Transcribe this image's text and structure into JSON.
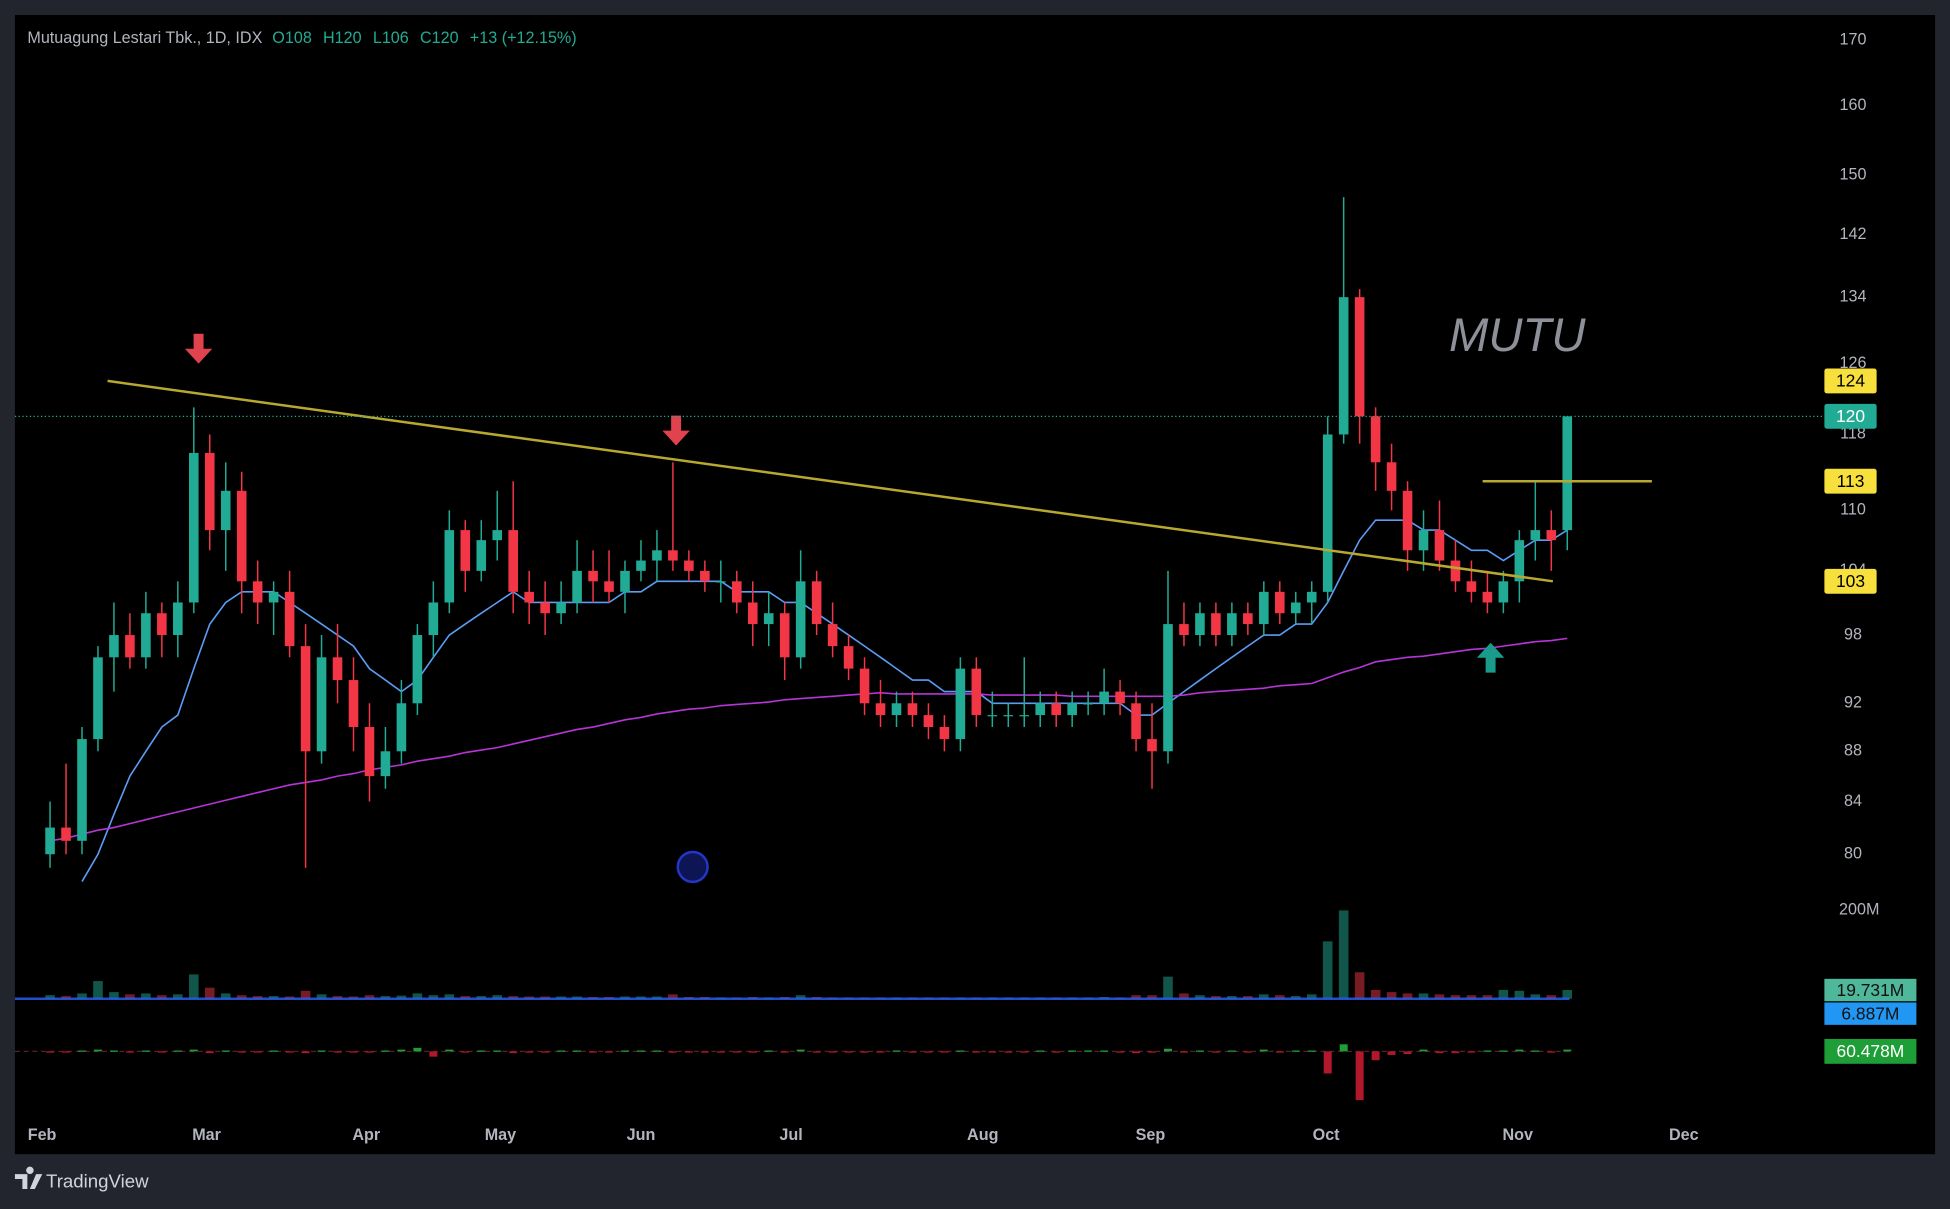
{
  "chart_data": {
    "type": "candlestick",
    "title": "Mutuagung Lestari Tbk., 1D, IDX",
    "legend_values": [
      "O108",
      "H120",
      "L106",
      "C120",
      "+13 (+12.15%)"
    ],
    "watermark": "MUTU",
    "up_color": "#22ab94",
    "down_color": "#f23645",
    "log_scale": true,
    "grid": false,
    "xlim": [
      -2.2,
      110.4
    ],
    "xticks": [
      {
        "value": -0.5,
        "label": "Feb"
      },
      {
        "value": 9.8,
        "label": "Mar"
      },
      {
        "value": 19.8,
        "label": "Apr"
      },
      {
        "value": 28.2,
        "label": "May"
      },
      {
        "value": 37.0,
        "label": "Jun"
      },
      {
        "value": 46.4,
        "label": "Jul"
      },
      {
        "value": 58.4,
        "label": "Aug"
      },
      {
        "value": 68.9,
        "label": "Sep"
      },
      {
        "value": 79.9,
        "label": "Oct"
      },
      {
        "value": 91.9,
        "label": "Nov"
      },
      {
        "value": 102.3,
        "label": "Dec"
      }
    ],
    "ylim": [
      77,
      174
    ],
    "yticks": [
      80,
      84,
      88,
      92,
      98,
      104,
      110,
      118,
      126,
      134,
      142,
      150,
      160,
      170
    ],
    "candles": [
      [
        80,
        84,
        79,
        82
      ],
      [
        82,
        87,
        80,
        81
      ],
      [
        81,
        90,
        80,
        89
      ],
      [
        89,
        97,
        88,
        96
      ],
      [
        96,
        101,
        93,
        98
      ],
      [
        98,
        100,
        95,
        96
      ],
      [
        96,
        102,
        95,
        100
      ],
      [
        100,
        101,
        96,
        98
      ],
      [
        98,
        103,
        96,
        101
      ],
      [
        101,
        121,
        100,
        116
      ],
      [
        116,
        118,
        106,
        108
      ],
      [
        108,
        115,
        104,
        112
      ],
      [
        112,
        114,
        100,
        103
      ],
      [
        103,
        105,
        99,
        101
      ],
      [
        101,
        103,
        98,
        102
      ],
      [
        102,
        104,
        96,
        97
      ],
      [
        97,
        99,
        79,
        88
      ],
      [
        88,
        98,
        87,
        96
      ],
      [
        96,
        99,
        92,
        94
      ],
      [
        94,
        96,
        88,
        90
      ],
      [
        90,
        92,
        84,
        86
      ],
      [
        86,
        90,
        85,
        88
      ],
      [
        88,
        94,
        87,
        92
      ],
      [
        92,
        99,
        91,
        98
      ],
      [
        98,
        103,
        96,
        101
      ],
      [
        101,
        110,
        100,
        108
      ],
      [
        108,
        109,
        102,
        104
      ],
      [
        104,
        109,
        103,
        107
      ],
      [
        107,
        112,
        105,
        108
      ],
      [
        108,
        113,
        100,
        102
      ],
      [
        102,
        104,
        99,
        101
      ],
      [
        101,
        103,
        98,
        100
      ],
      [
        100,
        103,
        99,
        101
      ],
      [
        101,
        107,
        100,
        104
      ],
      [
        104,
        106,
        101,
        103
      ],
      [
        103,
        106,
        101,
        102
      ],
      [
        102,
        105,
        100,
        104
      ],
      [
        104,
        107,
        103,
        105
      ],
      [
        105,
        108,
        103,
        106
      ],
      [
        106,
        115,
        104,
        105
      ],
      [
        105,
        106,
        103,
        104
      ],
      [
        104,
        105,
        102,
        103
      ],
      [
        103,
        105,
        101,
        103
      ],
      [
        103,
        104,
        100,
        101
      ],
      [
        101,
        103,
        97,
        99
      ],
      [
        99,
        102,
        97,
        100
      ],
      [
        100,
        101,
        94,
        96
      ],
      [
        96,
        106,
        95,
        103
      ],
      [
        103,
        104,
        98,
        99
      ],
      [
        99,
        101,
        96,
        97
      ],
      [
        97,
        98,
        94,
        95
      ],
      [
        95,
        96,
        91,
        92
      ],
      [
        92,
        94,
        90,
        91
      ],
      [
        91,
        93,
        90,
        92
      ],
      [
        92,
        93,
        90,
        91
      ],
      [
        91,
        92,
        89,
        90
      ],
      [
        90,
        91,
        88,
        89
      ],
      [
        89,
        96,
        88,
        95
      ],
      [
        95,
        96,
        90,
        91
      ],
      [
        91,
        93,
        90,
        91
      ],
      [
        91,
        92,
        90,
        91
      ],
      [
        91,
        96,
        90,
        91
      ],
      [
        91,
        93,
        90,
        92
      ],
      [
        92,
        93,
        90,
        91
      ],
      [
        91,
        93,
        90,
        92
      ],
      [
        92,
        93,
        91,
        92
      ],
      [
        92,
        95,
        91,
        93
      ],
      [
        93,
        94,
        91,
        92
      ],
      [
        92,
        93,
        88,
        89
      ],
      [
        89,
        92,
        85,
        88
      ],
      [
        88,
        104,
        87,
        99
      ],
      [
        99,
        101,
        97,
        98
      ],
      [
        98,
        101,
        97,
        100
      ],
      [
        100,
        101,
        97,
        98
      ],
      [
        98,
        101,
        97,
        100
      ],
      [
        100,
        101,
        98,
        99
      ],
      [
        99,
        103,
        98,
        102
      ],
      [
        102,
        103,
        99,
        100
      ],
      [
        100,
        102,
        99,
        101
      ],
      [
        101,
        103,
        99,
        102
      ],
      [
        102,
        120,
        101,
        118
      ],
      [
        118,
        147,
        117,
        134
      ],
      [
        134,
        135,
        117,
        120
      ],
      [
        120,
        121,
        112,
        115
      ],
      [
        115,
        117,
        110,
        112
      ],
      [
        112,
        113,
        104,
        106
      ],
      [
        106,
        110,
        104,
        108
      ],
      [
        108,
        111,
        104,
        105
      ],
      [
        105,
        107,
        102,
        103
      ],
      [
        103,
        105,
        101,
        102
      ],
      [
        102,
        104,
        100,
        101
      ],
      [
        101,
        104,
        100,
        103
      ],
      [
        103,
        108,
        101,
        107
      ],
      [
        107,
        113,
        105,
        108
      ],
      [
        108,
        110,
        104,
        107
      ],
      [
        108,
        120,
        106,
        120
      ]
    ],
    "moving_averages": [
      {
        "color": "#5b9cf6",
        "values": [
          null,
          null,
          78,
          80,
          83,
          86,
          88,
          90,
          91,
          95,
          99,
          101,
          102,
          102,
          102,
          101,
          100,
          99,
          98,
          97,
          95,
          94,
          93,
          94,
          96,
          98,
          99,
          100,
          101,
          102,
          101,
          101,
          101,
          101,
          101,
          101,
          102,
          102,
          103,
          103,
          103,
          103,
          103,
          102,
          102,
          102,
          101,
          101,
          100,
          99,
          98,
          97,
          96,
          95,
          94,
          94,
          93,
          93,
          93,
          92,
          92,
          92,
          92,
          92,
          92,
          92,
          92,
          92,
          91,
          91,
          92,
          93,
          94,
          95,
          96,
          97,
          98,
          98,
          99,
          99,
          101,
          104,
          107,
          109,
          109,
          109,
          108,
          108,
          107,
          106,
          106,
          105,
          106,
          107,
          107,
          108
        ]
      },
      {
        "color": "#b535d6",
        "values": [
          81.0,
          81.2,
          81.5,
          81.8,
          82.0,
          82.3,
          82.6,
          82.9,
          83.2,
          83.5,
          83.8,
          84.1,
          84.4,
          84.7,
          85.0,
          85.3,
          85.5,
          85.7,
          86.0,
          86.2,
          86.5,
          86.7,
          86.9,
          87.2,
          87.4,
          87.6,
          87.9,
          88.1,
          88.3,
          88.6,
          88.9,
          89.2,
          89.5,
          89.8,
          90.0,
          90.3,
          90.6,
          90.8,
          91.1,
          91.3,
          91.5,
          91.6,
          91.8,
          91.9,
          92.0,
          92.1,
          92.3,
          92.4,
          92.5,
          92.6,
          92.7,
          92.8,
          92.9,
          92.8,
          92.8,
          92.8,
          92.8,
          92.8,
          92.8,
          92.7,
          92.7,
          92.7,
          92.7,
          92.7,
          92.6,
          92.6,
          92.6,
          92.6,
          92.6,
          92.6,
          92.6,
          92.7,
          92.9,
          93.0,
          93.1,
          93.2,
          93.3,
          93.5,
          93.6,
          93.7,
          94.2,
          94.7,
          95.1,
          95.6,
          95.8,
          96.0,
          96.1,
          96.3,
          96.5,
          96.7,
          96.8,
          97.0,
          97.2,
          97.4,
          97.5,
          97.7
        ]
      }
    ],
    "price_labels": [
      {
        "value": 124,
        "color": "#f7e03c"
      },
      {
        "value": 120,
        "color": "#22ab94",
        "style": "dotted"
      },
      {
        "value": 113,
        "color": "#f7e03c"
      },
      {
        "value": 103,
        "color": "#f7e03c"
      }
    ],
    "trend_lines": [
      {
        "color": "#b8a830",
        "points": [
          [
            3.6,
            124
          ],
          [
            94.1,
            103
          ]
        ]
      },
      {
        "color": "#b8a830",
        "points": [
          [
            89.7,
            113
          ],
          [
            100.3,
            113
          ]
        ]
      }
    ],
    "arrows": [
      {
        "direction": "down",
        "x": 9.3,
        "y": 126,
        "color": "#e0424e"
      },
      {
        "direction": "down",
        "x": 39.2,
        "y": 116.8,
        "color": "#e0424e"
      },
      {
        "direction": "up",
        "x": 90.2,
        "y": 97.3,
        "color": "#1a9c8c"
      }
    ],
    "volume": {
      "values": [
        8,
        6,
        12,
        40,
        15,
        10,
        12,
        8,
        10,
        55,
        25,
        12,
        8,
        6,
        6,
        5,
        18,
        10,
        6,
        5,
        8,
        6,
        7,
        12,
        8,
        10,
        6,
        6,
        8,
        6,
        5,
        5,
        5,
        5,
        4,
        4,
        5,
        5,
        5,
        10,
        4,
        4,
        3,
        3,
        4,
        3,
        4,
        8,
        4,
        3,
        3,
        3,
        3,
        3,
        3,
        3,
        3,
        3,
        3,
        3,
        3,
        3,
        3,
        3,
        3,
        3,
        4,
        3,
        8,
        8,
        50,
        12,
        8,
        6,
        6,
        6,
        10,
        8,
        6,
        10,
        130,
        200,
        60,
        20,
        15,
        12,
        12,
        10,
        8,
        8,
        8,
        20,
        18,
        10,
        8,
        19.731
      ],
      "ylim": [
        0,
        200
      ],
      "yticks": [
        {
          "value": 200,
          "label": "200M"
        }
      ],
      "labels": [
        {
          "value": 19.731,
          "label": "19.731M",
          "color": "#4fb89a"
        },
        {
          "value": 6.887,
          "label": "6.887M",
          "color": "#2196f3"
        }
      ]
    },
    "oscillator": {
      "values": [
        -1,
        -1,
        1,
        2,
        1,
        -1,
        1,
        -1,
        1,
        2,
        -2,
        1,
        -1,
        -1,
        1,
        -1,
        -2,
        1,
        -1,
        -1,
        -1,
        1,
        2,
        4,
        -6,
        2,
        -1,
        1,
        1,
        -2,
        -1,
        -1,
        1,
        1,
        -1,
        -1,
        1,
        1,
        1,
        -1,
        -1,
        -1,
        -1,
        -1,
        -1,
        1,
        -1,
        2,
        -1,
        -1,
        -1,
        -1,
        -1,
        1,
        -1,
        -1,
        -1,
        1,
        -1,
        -1,
        -1,
        -1,
        1,
        -1,
        1,
        1,
        1,
        -1,
        -2,
        -1,
        3,
        -1,
        1,
        -1,
        1,
        -1,
        2,
        -1,
        1,
        1,
        -25,
        8,
        -55,
        -10,
        -4,
        -3,
        2,
        -2,
        -2,
        -1,
        1,
        1,
        2,
        1,
        -1,
        2
      ],
      "ylim": [
        -60,
        30
      ],
      "labels": [
        {
          "value": 60.478,
          "label": "60.478M",
          "color": "#1e9e36"
        }
      ]
    }
  },
  "footer": {
    "brand": "TradingView"
  }
}
